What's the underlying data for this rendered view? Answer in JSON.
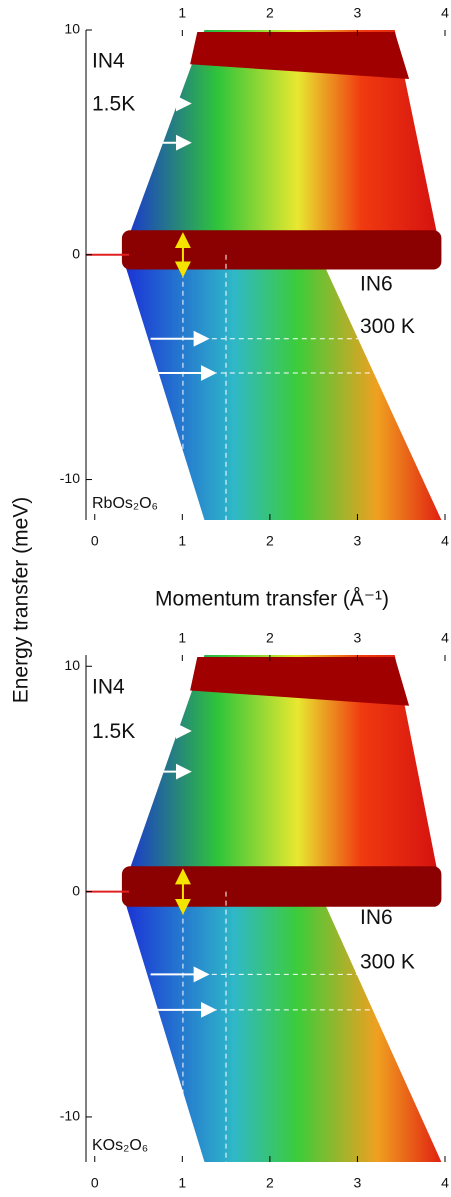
{
  "chart_data": [
    {
      "type": "heatmap",
      "ylabel": "Energy transfer (meV)",
      "xlabel": "Momentum transfer (Å⁻¹)",
      "xlim": [
        -0.1,
        4
      ],
      "xticks": [
        0,
        1,
        2,
        3,
        4
      ],
      "x2ticks": [
        1,
        2,
        3,
        4
      ],
      "ylim": [
        -11.8,
        10
      ],
      "yticks": [
        10,
        0,
        -10
      ],
      "labels": [
        "IN4",
        "1.5K",
        "IN6",
        "300 K"
      ],
      "sample": "RbOs₂O₆"
    },
    {
      "type": "heatmap",
      "xlim": [
        -0.1,
        4
      ],
      "xticks": [
        0,
        1,
        2,
        3,
        4
      ],
      "x2ticks": [
        1,
        2,
        3,
        4
      ],
      "ylim": [
        -12,
        10.5
      ],
      "yticks": [
        10,
        0,
        -10
      ],
      "labels": [
        "IN4",
        "1.5K",
        "IN6",
        "300 K"
      ],
      "sample": "KOs₂O₆"
    }
  ]
}
